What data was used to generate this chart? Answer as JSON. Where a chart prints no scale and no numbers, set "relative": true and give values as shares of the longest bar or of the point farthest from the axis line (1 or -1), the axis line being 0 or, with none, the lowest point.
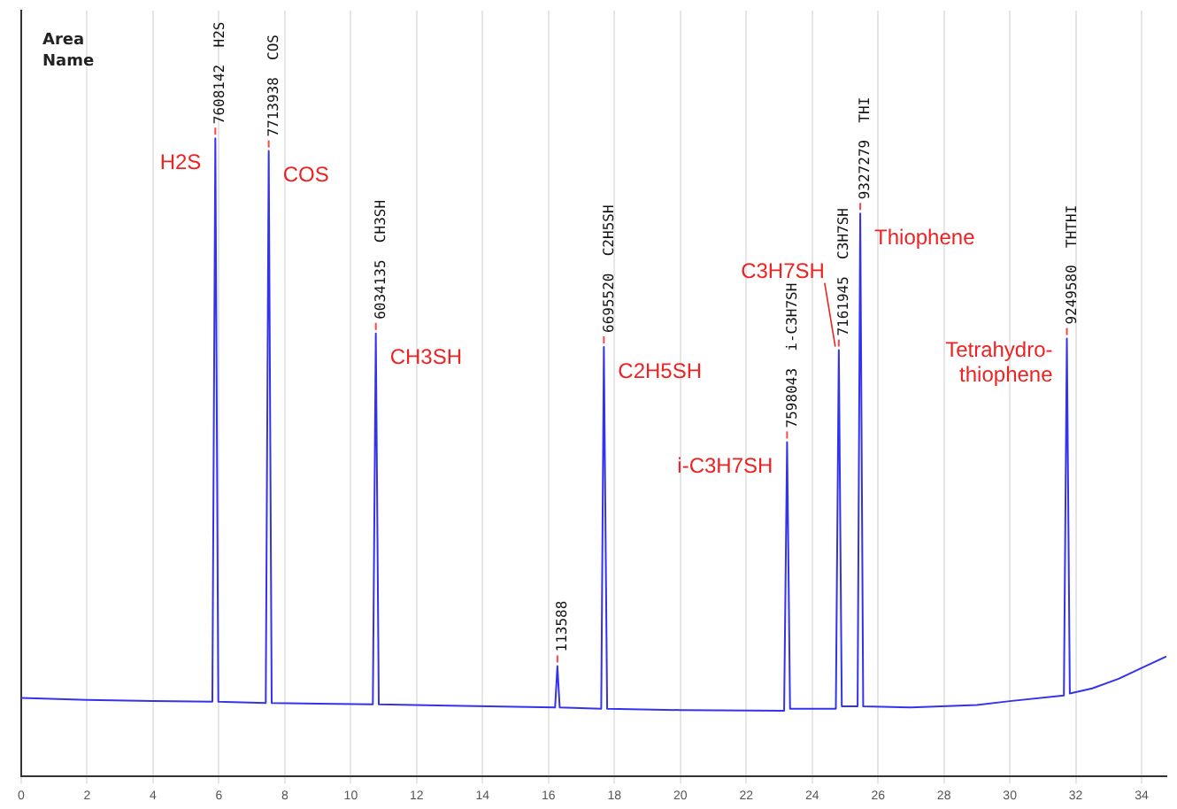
{
  "chart_data": {
    "type": "line",
    "relative": true,
    "xlim": [
      0,
      34.75
    ],
    "xticks": [
      0,
      2,
      4,
      6,
      8,
      10,
      12,
      14,
      16,
      18,
      20,
      22,
      24,
      26,
      28,
      30,
      32,
      34
    ],
    "grid": "x",
    "tick_labels": "x",
    "marker": "none",
    "line_style": "solid",
    "series": [
      {
        "color": "#3333ee",
        "x": [
          0,
          2,
          4,
          5.8,
          5.89,
          5.98,
          7.42,
          7.51,
          7.6,
          9,
          10.67,
          10.76,
          10.85,
          13,
          16.2,
          16.27,
          16.34,
          17.6,
          17.68,
          17.78,
          20,
          23.15,
          23.24,
          23.33,
          24.72,
          24.81,
          24.9,
          25.38,
          25.46,
          25.55,
          27,
          29,
          30,
          31.64,
          31.73,
          31.82,
          32.5,
          33.3,
          34,
          34.75
        ],
        "values": [
          0.123,
          0.12,
          0.118,
          0.117,
          1.0,
          0.117,
          0.115,
          0.98,
          0.115,
          0.114,
          0.113,
          0.694,
          0.113,
          0.111,
          0.108,
          0.173,
          0.108,
          0.106,
          0.673,
          0.106,
          0.104,
          0.103,
          0.524,
          0.106,
          0.106,
          0.668,
          0.11,
          0.11,
          0.882,
          0.11,
          0.108,
          0.112,
          0.118,
          0.127,
          0.686,
          0.13,
          0.138,
          0.153,
          0.17,
          0.188
        ]
      }
    ],
    "annotations": [
      "Area\nName",
      {
        "text": "7608142  H2S",
        "x": 5.89,
        "y": 1.0
      },
      {
        "text": "H2S",
        "x": 5.89,
        "y": 1.0
      },
      {
        "text": "7713938  COS",
        "x": 7.51,
        "y": 0.98
      },
      {
        "text": "COS",
        "x": 7.51,
        "y": 0.98
      },
      {
        "text": "6034135  CH3SH",
        "x": 10.76,
        "y": 0.694
      },
      {
        "text": "CH3SH",
        "x": 10.76,
        "y": 0.694
      },
      {
        "text": "113588",
        "x": 16.27,
        "y": 0.173
      },
      {
        "text": "6695520  C2H5SH",
        "x": 17.68,
        "y": 0.673
      },
      {
        "text": "C2H5SH",
        "x": 17.68,
        "y": 0.673
      },
      {
        "text": "7598043  i-C3H7SH",
        "x": 23.24,
        "y": 0.524
      },
      {
        "text": "i-C3H7SH",
        "x": 23.24,
        "y": 0.524
      },
      {
        "text": "7161945  C3H7SH",
        "x": 24.81,
        "y": 0.668
      },
      {
        "text": "C3H7SH",
        "x": 24.81,
        "y": 0.668
      },
      {
        "text": "9327279  THI",
        "x": 25.46,
        "y": 0.882
      },
      {
        "text": "Thiophene",
        "x": 25.46,
        "y": 0.882
      },
      {
        "text": "9249580  THTHI",
        "x": 31.73,
        "y": 0.686
      },
      {
        "text": "Tetrahydro-\nthiophene",
        "x": 31.73,
        "y": 0.686
      }
    ]
  }
}
